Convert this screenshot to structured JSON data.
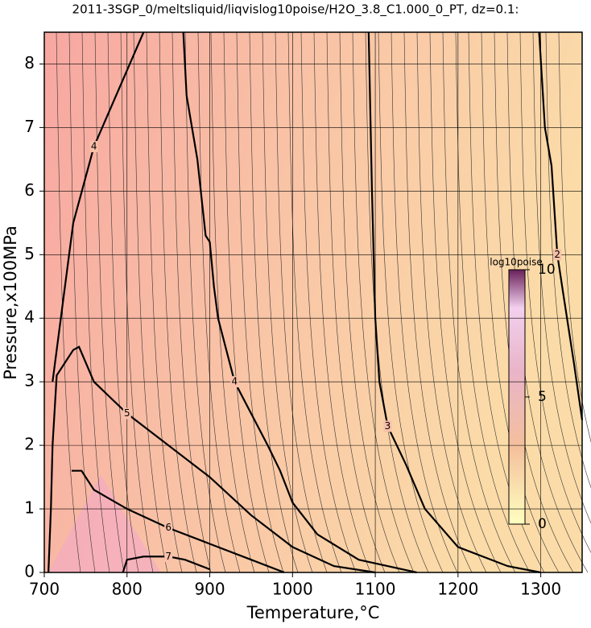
{
  "chart_data": {
    "type": "contour",
    "title": "2011-3SGP_0/meltsliquid/liqvislog10poise/H2O_3.8_C1.000_0_PT, dz=0.1:",
    "xlabel": "Temperature,°C",
    "ylabel": "Pressure,x100MPa",
    "xlim": [
      700,
      1350
    ],
    "xticks": [
      700,
      800,
      900,
      1000,
      1100,
      1200,
      1300
    ],
    "ylim": [
      0,
      8.5
    ],
    "yticks": [
      0,
      1,
      2,
      3,
      4,
      5,
      6,
      7,
      8
    ],
    "grid": true,
    "line_color": "#000000",
    "contours": [
      {
        "level": 2,
        "x": [
          1298,
          1305,
          1313,
          1320,
          1327,
          1340,
          1350
        ],
        "y": [
          8.5,
          7,
          6.4,
          5,
          4.4,
          3.3,
          2.4
        ]
      },
      {
        "level": 3,
        "x": [
          1092,
          1096,
          1098,
          1100,
          1105,
          1115,
          1137,
          1160,
          1200,
          1260,
          1300
        ],
        "y": [
          8.5,
          6,
          5,
          4,
          3,
          2.3,
          1.7,
          1.0,
          0.4,
          0.1,
          0
        ]
      },
      {
        "level": 4,
        "x": [
          868,
          872,
          885,
          895,
          900,
          905,
          910,
          930,
          950,
          970,
          985,
          1000,
          1030,
          1080,
          1150
        ],
        "y": [
          8.5,
          7.5,
          6.5,
          5.3,
          5.2,
          4.5,
          4,
          3.0,
          2.5,
          2.0,
          1.6,
          1.1,
          0.6,
          0.2,
          0
        ]
      },
      {
        "level": 4,
        "x": [
          710,
          720,
          735,
          760,
          800,
          820
        ],
        "y": [
          3.0,
          4.0,
          5.5,
          6.7,
          7.9,
          8.5
        ]
      },
      {
        "level": 5,
        "x": [
          705,
          708,
          710,
          715,
          735,
          742,
          760,
          800,
          850,
          900,
          950,
          1000,
          1050,
          1100
        ],
        "y": [
          0,
          1,
          2,
          3.1,
          3.5,
          3.55,
          3.0,
          2.5,
          2.0,
          1.5,
          0.9,
          0.4,
          0.1,
          0
        ]
      },
      {
        "level": 6,
        "x": [
          733,
          745,
          760,
          800,
          850,
          900,
          950,
          990
        ],
        "y": [
          1.6,
          1.6,
          1.3,
          1.0,
          0.7,
          0.45,
          0.2,
          0
        ]
      },
      {
        "level": 7,
        "x": [
          795,
          800,
          820,
          850,
          870,
          900
        ],
        "y": [
          0,
          0.2,
          0.25,
          0.25,
          0.2,
          0.05
        ]
      }
    ],
    "colorbar": {
      "label": "log10poise",
      "lim": [
        0,
        10
      ],
      "ticks": [
        0,
        5,
        10
      ]
    }
  }
}
